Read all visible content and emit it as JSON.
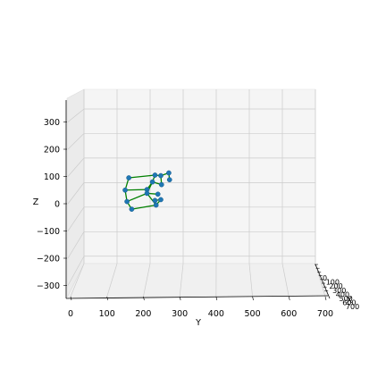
{
  "chart_data": {
    "type": "scatter",
    "projection": "3d",
    "title": "",
    "xlabel": "X",
    "ylabel": "Y",
    "zlabel": "Z",
    "xlim": [
      0,
      700
    ],
    "ylim": [
      0,
      700
    ],
    "zlim": [
      -330,
      380
    ],
    "y_ticks": [
      "0",
      "100",
      "200",
      "300",
      "400",
      "500",
      "600",
      "700"
    ],
    "z_ticks": [
      "300",
      "200",
      "100",
      "0",
      "−100",
      "−200",
      "−300"
    ],
    "x_ticks": [
      "0",
      "100",
      "200",
      "300",
      "400",
      "500",
      "600",
      "700"
    ],
    "grid": true,
    "colors": {
      "points": "#1f77b4",
      "points_edge": "#1a5d8c",
      "links": "#008000",
      "pane": "#f2f2f2",
      "grid": "#cccccc"
    },
    "points": [
      {
        "y": 160,
        "z": 95
      },
      {
        "y": 232,
        "z": 105
      },
      {
        "y": 248,
        "z": 103
      },
      {
        "y": 270,
        "z": 113
      },
      {
        "y": 272,
        "z": 88
      },
      {
        "y": 150,
        "z": 50
      },
      {
        "y": 225,
        "z": 80
      },
      {
        "y": 250,
        "z": 70
      },
      {
        "y": 210,
        "z": 52
      },
      {
        "y": 155,
        "z": 8
      },
      {
        "y": 240,
        "z": 35
      },
      {
        "y": 210,
        "z": 38
      },
      {
        "y": 168,
        "z": -20
      },
      {
        "y": 235,
        "z": -5
      },
      {
        "y": 248,
        "z": 15
      },
      {
        "y": 232,
        "z": 12
      }
    ],
    "links": [
      [
        0,
        1
      ],
      [
        1,
        2
      ],
      [
        2,
        3
      ],
      [
        3,
        4
      ],
      [
        0,
        5
      ],
      [
        5,
        9
      ],
      [
        9,
        12
      ],
      [
        12,
        13
      ],
      [
        13,
        14
      ],
      [
        14,
        15
      ],
      [
        9,
        11
      ],
      [
        11,
        10
      ],
      [
        5,
        8
      ],
      [
        8,
        6
      ],
      [
        6,
        7
      ],
      [
        1,
        6
      ],
      [
        6,
        11
      ],
      [
        11,
        13
      ],
      [
        2,
        7
      ]
    ]
  }
}
